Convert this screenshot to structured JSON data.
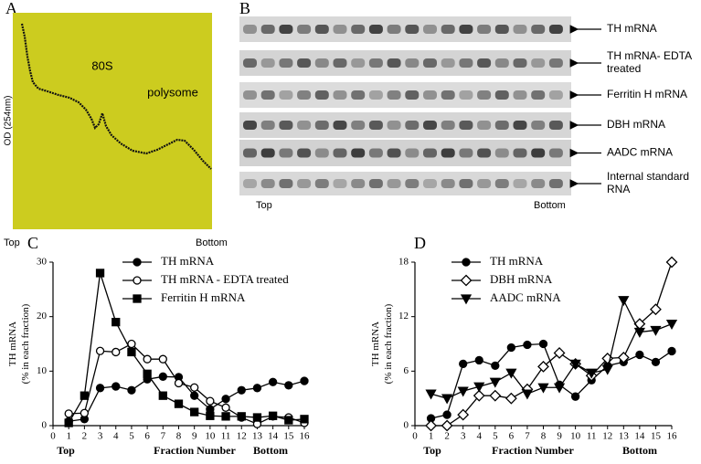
{
  "panel_a": {
    "label": "A",
    "ylabel": "OD (254nm)",
    "annotations": [
      "80S",
      "polysome"
    ],
    "x_ends": [
      "Top",
      "Bottom"
    ]
  },
  "panel_b": {
    "label": "B",
    "rows": [
      [
        "TH mRNA"
      ],
      [
        "TH mRNA- EDTA",
        "treated"
      ],
      [
        "Ferritin H mRNA"
      ],
      [
        "DBH mRNA"
      ],
      [
        "AADC mRNA"
      ],
      [
        "Internal standard",
        "RNA"
      ]
    ],
    "x_ends": [
      "Top",
      "Bottom"
    ]
  },
  "chart_data": [
    {
      "type": "line",
      "label": "C",
      "ylabel": [
        "TH mRNA",
        "(% in each fraction)"
      ],
      "xlabel": "Fraction Number",
      "x_ends": [
        "Top",
        "Bottom"
      ],
      "x": [
        1,
        2,
        3,
        4,
        5,
        6,
        7,
        8,
        9,
        10,
        11,
        12,
        13,
        14,
        15,
        16
      ],
      "xlim": [
        0,
        16
      ],
      "xticks": [
        0,
        1,
        2,
        3,
        4,
        5,
        6,
        7,
        8,
        9,
        10,
        11,
        12,
        13,
        14,
        15,
        16
      ],
      "ylim": [
        0,
        30
      ],
      "yticks": [
        0,
        10,
        20,
        30
      ],
      "legend": "upper-center",
      "series": [
        {
          "name": "TH mRNA",
          "color": "#000000",
          "marker": "filled-circle",
          "values": [
            0.8,
            1.2,
            6.9,
            7.2,
            6.5,
            8.5,
            9.0,
            8.9,
            5.5,
            3.0,
            4.9,
            6.5,
            6.9,
            8.0,
            7.4,
            8.2
          ]
        },
        {
          "name": "TH mRNA - EDTA treated",
          "color": "#000000",
          "marker": "open-circle",
          "values": [
            2.2,
            2.3,
            13.7,
            13.5,
            15.0,
            12.2,
            12.2,
            7.8,
            7.0,
            4.5,
            3.3,
            1.5,
            0.3,
            1.7,
            1.5,
            0.5
          ]
        },
        {
          "name": "Ferritin H mRNA",
          "color": "#000000",
          "marker": "filled-square",
          "values": [
            0.5,
            5.5,
            28.0,
            19.0,
            13.5,
            9.5,
            5.5,
            4.0,
            2.5,
            1.8,
            1.7,
            1.7,
            1.5,
            1.8,
            1.0,
            1.2
          ]
        }
      ]
    },
    {
      "type": "line",
      "label": "D",
      "ylabel": [
        "TH mRNA",
        "(% in each fraction)"
      ],
      "xlabel": "Fraction Number",
      "x_ends": [
        "Top",
        "Bottom"
      ],
      "x": [
        1,
        2,
        3,
        4,
        5,
        6,
        7,
        8,
        9,
        10,
        11,
        12,
        13,
        14,
        15,
        16
      ],
      "xlim": [
        0,
        16
      ],
      "xticks": [
        0,
        1,
        2,
        3,
        4,
        5,
        6,
        7,
        8,
        9,
        10,
        11,
        12,
        13,
        14,
        15,
        16
      ],
      "ylim": [
        0,
        18
      ],
      "yticks": [
        0,
        6,
        12,
        18
      ],
      "legend": "upper-left",
      "series": [
        {
          "name": "TH mRNA",
          "color": "#000000",
          "marker": "filled-circle",
          "values": [
            0.8,
            1.2,
            6.8,
            7.2,
            6.6,
            8.6,
            8.9,
            9.0,
            4.5,
            3.2,
            5.0,
            6.6,
            7.0,
            7.8,
            7.0,
            8.2
          ]
        },
        {
          "name": "DBH mRNA",
          "color": "#000000",
          "marker": "open-diamond",
          "values": [
            0,
            0,
            1.2,
            3.3,
            3.3,
            3.0,
            4.0,
            6.5,
            8.0,
            6.8,
            5.5,
            7.4,
            7.5,
            11.2,
            12.8,
            18.0
          ]
        },
        {
          "name": "AADC mRNA",
          "color": "#000000",
          "marker": "filled-triangle-down",
          "values": [
            3.5,
            3.0,
            3.8,
            4.3,
            4.8,
            5.8,
            3.5,
            4.2,
            4.2,
            6.8,
            5.8,
            6.2,
            13.8,
            10.3,
            10.5,
            11.2
          ]
        }
      ]
    }
  ]
}
